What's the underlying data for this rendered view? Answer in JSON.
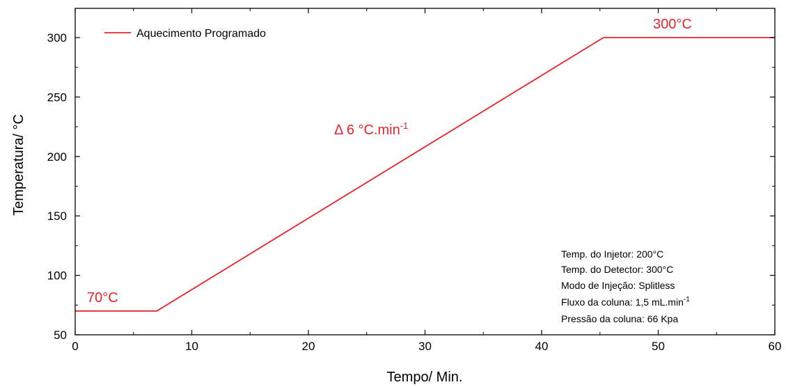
{
  "colors": {
    "series": "#e8232a",
    "axis": "#000000",
    "text": "#000000"
  },
  "chart_data": {
    "type": "line",
    "xlabel": "Tempo/ Min.",
    "ylabel": "Temperatura/ °C",
    "xlim": [
      0,
      60
    ],
    "ylim": [
      50,
      320
    ],
    "xticks": [
      0,
      10,
      20,
      30,
      40,
      50,
      60
    ],
    "yticks": [
      50,
      100,
      150,
      200,
      250,
      300
    ],
    "x_tick_labels": [
      "0",
      "10",
      "20",
      "30",
      "40",
      "50",
      "60"
    ],
    "y_tick_labels": [
      "50",
      "100",
      "150",
      "200",
      "250",
      "300"
    ],
    "grid": false,
    "legend_position": "top-left",
    "series": [
      {
        "name": "Aquecimento Programado",
        "x": [
          0,
          7,
          45.3,
          60
        ],
        "y": [
          70,
          70,
          300,
          300
        ]
      }
    ],
    "annotations": {
      "start": "70°C",
      "end": "300°C",
      "rate_prefix": "Δ 6 °C.min",
      "rate_sup": "-1"
    },
    "conditions": [
      {
        "text": "Temp. do Injetor: 200°C"
      },
      {
        "text": "Temp. do Detector: 300°C"
      },
      {
        "text": "Modo de Injeção: Splitless"
      },
      {
        "text": "Fluxo da coluna: 1,5 mL.min",
        "sup": "-1"
      },
      {
        "text": "Pressão da coluna: 66 Kpa"
      }
    ]
  }
}
